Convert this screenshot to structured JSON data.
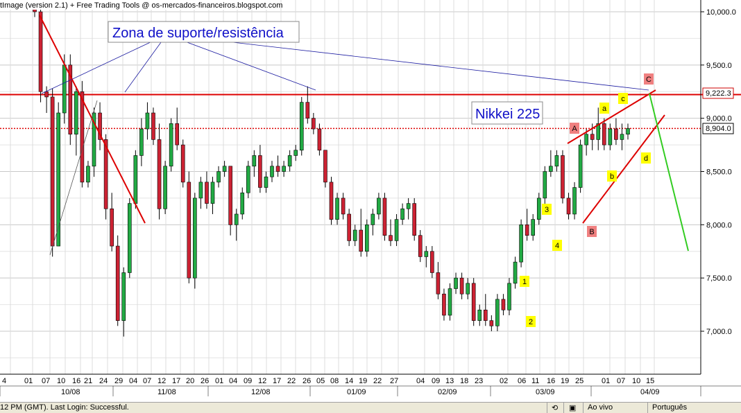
{
  "header": {
    "title": "tImage (version 2.1) + Free Trading Tools @ os-mercados-financeiros.blogspot.com"
  },
  "chart_data": {
    "type": "candlestick",
    "title": "Nikkei 225",
    "annotation": "Zona de suporte/resistência",
    "price_labels": {
      "resistance": "9,222.3",
      "last": "8,904.0"
    },
    "y_ticks": [
      {
        "v": 10000,
        "label": "10,000.0"
      },
      {
        "v": 9500,
        "label": "9,500.0"
      },
      {
        "v": 9000,
        "label": "9,000.0"
      },
      {
        "v": 8500,
        "label": "8,500.0"
      },
      {
        "v": 8000,
        "label": "8,000.0"
      },
      {
        "v": 7500,
        "label": "7,500.0"
      },
      {
        "v": 7000,
        "label": "7,000.0"
      }
    ],
    "ylim": [
      6400,
      10100
    ],
    "resistance_level": 9222.3,
    "last_level": 8904.0,
    "day_ticks": [
      "4",
      "01",
      "07",
      "10",
      "16",
      "21",
      "24",
      "29",
      "04",
      "07",
      "12",
      "17",
      "20",
      "26",
      "01",
      "04",
      "09",
      "12",
      "17",
      "22",
      "26",
      "05",
      "08",
      "14",
      "19",
      "22",
      "27",
      "04",
      "09",
      "13",
      "18",
      "23",
      "02",
      "06",
      "11",
      "16",
      "19",
      "25",
      "01",
      "07",
      "10",
      "15"
    ],
    "month_labels": [
      "10/08",
      "11/08",
      "12/08",
      "01/09",
      "02/09",
      "03/09",
      "04/09"
    ],
    "wave_labels": {
      "A": "A",
      "B": "B",
      "C": "C",
      "a": "a",
      "b": "b",
      "c": "c",
      "d": "d",
      "n1": "1",
      "n2": "2",
      "n3": "3",
      "n4": "4"
    },
    "candles": [
      [
        10050,
        10300,
        9950,
        10000
      ],
      [
        10000,
        10050,
        9150,
        9250
      ],
      [
        9250,
        9300,
        9050,
        9200
      ],
      [
        9200,
        9280,
        7700,
        7800
      ],
      [
        7800,
        9150,
        7800,
        9050
      ],
      [
        9050,
        9600,
        8950,
        9500
      ],
      [
        9500,
        9600,
        8750,
        8850
      ],
      [
        8850,
        9300,
        8650,
        9250
      ],
      [
        9250,
        9350,
        8350,
        8400
      ],
      [
        8400,
        8600,
        8350,
        8550
      ],
      [
        8550,
        9100,
        8450,
        9050
      ],
      [
        9050,
        9150,
        8700,
        8800
      ],
      [
        8800,
        8850,
        8050,
        8150
      ],
      [
        8150,
        8300,
        7750,
        7800
      ],
      [
        7800,
        7900,
        7050,
        7100
      ],
      [
        7100,
        7600,
        6950,
        7550
      ],
      [
        7550,
        8250,
        7500,
        8200
      ],
      [
        8200,
        8700,
        8150,
        8650
      ],
      [
        8650,
        9000,
        8550,
        8900
      ],
      [
        8900,
        9150,
        8800,
        9050
      ],
      [
        9050,
        9100,
        8750,
        8800
      ],
      [
        8800,
        8950,
        8050,
        8150
      ],
      [
        8150,
        8600,
        8100,
        8550
      ],
      [
        8550,
        9000,
        8500,
        8950
      ],
      [
        8950,
        9100,
        8700,
        8750
      ],
      [
        8750,
        8800,
        8350,
        8400
      ],
      [
        8400,
        8500,
        7450,
        7500
      ],
      [
        7500,
        8300,
        7400,
        8250
      ],
      [
        8250,
        8450,
        8150,
        8400
      ],
      [
        8400,
        8500,
        8150,
        8200
      ],
      [
        8200,
        8450,
        8100,
        8400
      ],
      [
        8400,
        8550,
        8350,
        8500
      ],
      [
        8500,
        8600,
        8450,
        8550
      ],
      [
        8550,
        8550,
        7900,
        8000
      ],
      [
        8000,
        8150,
        7850,
        8100
      ],
      [
        8100,
        8350,
        8050,
        8300
      ],
      [
        8300,
        8600,
        8250,
        8550
      ],
      [
        8550,
        8700,
        8450,
        8650
      ],
      [
        8650,
        8750,
        8300,
        8350
      ],
      [
        8350,
        8500,
        8300,
        8450
      ],
      [
        8450,
        8600,
        8400,
        8550
      ],
      [
        8550,
        8650,
        8450,
        8500
      ],
      [
        8500,
        8600,
        8450,
        8550
      ],
      [
        8550,
        8700,
        8500,
        8650
      ],
      [
        8650,
        8750,
        8600,
        8700
      ],
      [
        8700,
        9200,
        8650,
        9150
      ],
      [
        9150,
        9300,
        8950,
        9000
      ],
      [
        9000,
        9050,
        8850,
        8900
      ],
      [
        8900,
        8950,
        8650,
        8700
      ],
      [
        8700,
        8700,
        8350,
        8400
      ],
      [
        8400,
        8450,
        8000,
        8050
      ],
      [
        8050,
        8300,
        8000,
        8250
      ],
      [
        8250,
        8300,
        8050,
        8100
      ],
      [
        8100,
        8150,
        7800,
        7850
      ],
      [
        7850,
        8000,
        7800,
        7950
      ],
      [
        7950,
        8150,
        7700,
        7750
      ],
      [
        7750,
        8050,
        7700,
        8000
      ],
      [
        8000,
        8150,
        7900,
        8100
      ],
      [
        8100,
        8300,
        8050,
        8250
      ],
      [
        8250,
        8300,
        7850,
        7900
      ],
      [
        7900,
        8050,
        7800,
        7850
      ],
      [
        7850,
        8100,
        7800,
        8050
      ],
      [
        8050,
        8200,
        8000,
        8150
      ],
      [
        8150,
        8250,
        8050,
        8200
      ],
      [
        8200,
        8250,
        7850,
        7900
      ],
      [
        7900,
        7950,
        7650,
        7700
      ],
      [
        7700,
        7800,
        7600,
        7750
      ],
      [
        7750,
        7800,
        7500,
        7550
      ],
      [
        7550,
        7650,
        7300,
        7350
      ],
      [
        7350,
        7400,
        7100,
        7150
      ],
      [
        7150,
        7450,
        7100,
        7400
      ],
      [
        7400,
        7550,
        7350,
        7500
      ],
      [
        7500,
        7550,
        7300,
        7350
      ],
      [
        7350,
        7500,
        7300,
        7450
      ],
      [
        7450,
        7500,
        7050,
        7100
      ],
      [
        7100,
        7250,
        7050,
        7200
      ],
      [
        7200,
        7350,
        7050,
        7100
      ],
      [
        7100,
        7150,
        7000,
        7050
      ],
      [
        7050,
        7350,
        7000,
        7300
      ],
      [
        7300,
        7350,
        7150,
        7200
      ],
      [
        7200,
        7500,
        7150,
        7450
      ],
      [
        7450,
        7700,
        7400,
        7650
      ],
      [
        7650,
        8050,
        7600,
        8000
      ],
      [
        8000,
        8150,
        7850,
        7900
      ],
      [
        7900,
        8100,
        7850,
        8050
      ],
      [
        8050,
        8300,
        8000,
        8250
      ],
      [
        8250,
        8550,
        8150,
        8500
      ],
      [
        8500,
        8700,
        8450,
        8550
      ],
      [
        8550,
        8700,
        8500,
        8650
      ],
      [
        8650,
        8700,
        8200,
        8250
      ],
      [
        8250,
        8300,
        8050,
        8100
      ],
      [
        8100,
        8400,
        8050,
        8350
      ],
      [
        8350,
        8800,
        8300,
        8750
      ],
      [
        8750,
        8900,
        8650,
        8850
      ],
      [
        8850,
        8950,
        8700,
        8800
      ],
      [
        8800,
        9100,
        8700,
        8950
      ],
      [
        8950,
        9000,
        8700,
        8750
      ],
      [
        8750,
        8950,
        8700,
        8900
      ],
      [
        8900,
        9000,
        8750,
        8800
      ],
      [
        8800,
        8950,
        8700,
        8850
      ],
      [
        8850,
        8950,
        8800,
        8904
      ]
    ],
    "x_axis_range": [
      0,
      110
    ]
  },
  "status_bar": {
    "left_text": "12 PM (GMT). Last Login: Successful.",
    "online_text": "Ao vivo",
    "language_text": "Português"
  }
}
